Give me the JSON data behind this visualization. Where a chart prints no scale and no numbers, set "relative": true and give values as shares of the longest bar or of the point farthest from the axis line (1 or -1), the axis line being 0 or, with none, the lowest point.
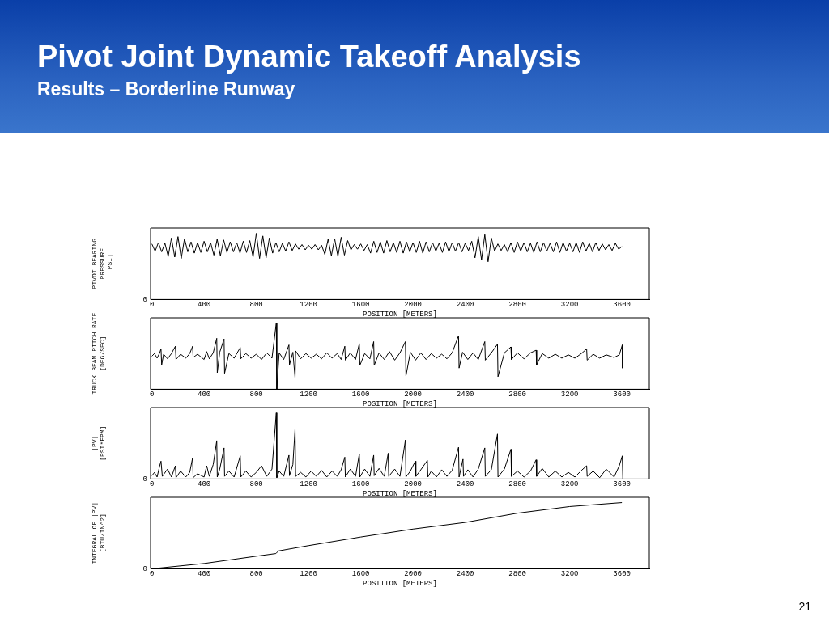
{
  "chart_data": [
    {
      "type": "line",
      "title": "Pivot Joint Dynamic Takeoff Analysis",
      "subtitle": "Results – Borderline Runway",
      "xlabel": "POSITION [METERS]",
      "ylabel": "PIVOT BEARING\nPRESSURE\n[PSI]",
      "relative": true,
      "xlim": [
        -10,
        3810
      ],
      "xticks": [
        0,
        400,
        800,
        1200,
        1600,
        2000,
        2400,
        2800,
        3200,
        3600
      ],
      "annotations": [
        "0"
      ],
      "series": [
        {
          "color": "#000000",
          "x": [
            0,
            25,
            50,
            75,
            100,
            125,
            150,
            175,
            200,
            225,
            250,
            275,
            300,
            325,
            350,
            375,
            400,
            425,
            450,
            475,
            500,
            525,
            550,
            575,
            600,
            625,
            650,
            675,
            700,
            725,
            750,
            775,
            800,
            825,
            850,
            875,
            900,
            925,
            950,
            975,
            1000,
            1025,
            1050,
            1075,
            1100,
            1125,
            1150,
            1175,
            1200,
            1225,
            1250,
            1275,
            1300,
            1325,
            1350,
            1375,
            1400,
            1425,
            1450,
            1475,
            1500,
            1525,
            1550,
            1575,
            1600,
            1625,
            1650,
            1675,
            1700,
            1725,
            1750,
            1775,
            1800,
            1825,
            1850,
            1875,
            1900,
            1925,
            1950,
            1975,
            2000,
            2025,
            2050,
            2075,
            2100,
            2125,
            2150,
            2175,
            2200,
            2225,
            2250,
            2275,
            2300,
            2325,
            2350,
            2375,
            2400,
            2425,
            2450,
            2475,
            2500,
            2525,
            2550,
            2575,
            2600,
            2625,
            2650,
            2675,
            2700,
            2725,
            2750,
            2775,
            2800,
            2825,
            2850,
            2875,
            2900,
            2925,
            2950,
            2975,
            3000,
            3025,
            3050,
            3075,
            3100,
            3125,
            3150,
            3175,
            3200,
            3225,
            3250,
            3275,
            3300,
            3325,
            3350,
            3375,
            3400,
            3425,
            3450,
            3475,
            3500,
            3525,
            3550,
            3575,
            3600
          ],
          "values": [
            0.84,
            0.73,
            0.86,
            0.72,
            0.85,
            0.65,
            0.93,
            0.64,
            0.95,
            0.62,
            0.92,
            0.72,
            0.87,
            0.7,
            0.86,
            0.71,
            0.88,
            0.72,
            0.86,
            0.67,
            0.91,
            0.66,
            0.9,
            0.71,
            0.87,
            0.72,
            0.86,
            0.7,
            0.88,
            0.71,
            0.89,
            0.64,
            1.0,
            0.62,
            0.96,
            0.63,
            0.93,
            0.7,
            0.86,
            0.72,
            0.85,
            0.73,
            0.87,
            0.74,
            0.84,
            0.76,
            0.83,
            0.75,
            0.82,
            0.76,
            0.83,
            0.75,
            0.82,
            0.68,
            0.91,
            0.66,
            0.92,
            0.65,
            0.94,
            0.67,
            0.89,
            0.75,
            0.83,
            0.76,
            0.84,
            0.74,
            0.83,
            0.7,
            0.88,
            0.71,
            0.87,
            0.7,
            0.89,
            0.72,
            0.86,
            0.71,
            0.88,
            0.7,
            0.87,
            0.72,
            0.86,
            0.71,
            0.88,
            0.7,
            0.87,
            0.72,
            0.86,
            0.73,
            0.85,
            0.71,
            0.87,
            0.72,
            0.86,
            0.73,
            0.86,
            0.72,
            0.85,
            0.74,
            0.88,
            0.63,
            0.95,
            0.6,
            0.98,
            0.57,
            0.93,
            0.73,
            0.84,
            0.74,
            0.83,
            0.72,
            0.86,
            0.71,
            0.87,
            0.73,
            0.86,
            0.72,
            0.85,
            0.71,
            0.87,
            0.72,
            0.86,
            0.73,
            0.85,
            0.72,
            0.87,
            0.71,
            0.86,
            0.73,
            0.85,
            0.72,
            0.86,
            0.71,
            0.87,
            0.73,
            0.85,
            0.72,
            0.86,
            0.74,
            0.84,
            0.75,
            0.83,
            0.74,
            0.85,
            0.76,
            0.8
          ]
        }
      ]
    },
    {
      "type": "line",
      "xlabel": "POSITION [METERS]",
      "ylabel": "TRUCK BEAM PITCH RATE\n[DEG/SEC]",
      "relative": true,
      "tick_labels": "x",
      "xlim": [
        -10,
        3810
      ],
      "xticks": [
        0,
        400,
        800,
        1200,
        1600,
        2000,
        2400,
        2800,
        3200,
        3600
      ],
      "series": [
        {
          "color": "#000000",
          "x": [
            0,
            20,
            40,
            60,
            70,
            75,
            90,
            120,
            150,
            180,
            185,
            220,
            260,
            290,
            312,
            316,
            350,
            400,
            420,
            440,
            470,
            497,
            501,
            520,
            553,
            557,
            590,
            630,
            677,
            681,
            720,
            760,
            800,
            840,
            880,
            920,
            953,
            957,
            975,
            1010,
            1050,
            1054,
            1080,
            1097,
            1101,
            1140,
            1180,
            1220,
            1260,
            1300,
            1340,
            1380,
            1420,
            1450,
            1478,
            1482,
            1520,
            1560,
            1589,
            1593,
            1630,
            1670,
            1699,
            1703,
            1740,
            1780,
            1820,
            1860,
            1900,
            1942,
            1946,
            1980,
            2020,
            2060,
            2100,
            2140,
            2180,
            2220,
            2260,
            2300,
            2349,
            2353,
            2380,
            2420,
            2460,
            2500,
            2550,
            2554,
            2600,
            2647,
            2651,
            2700,
            2750,
            2754,
            2800,
            2850,
            2900,
            2943,
            2947,
            2990,
            3040,
            3090,
            3140,
            3190,
            3240,
            3290,
            3330,
            3334,
            3380,
            3430,
            3480,
            3540,
            3580,
            3603,
            3605,
            3607
          ],
          "values": [
            0.5,
            0.54,
            0.47,
            0.55,
            0.61,
            0.37,
            0.53,
            0.46,
            0.54,
            0.65,
            0.45,
            0.53,
            0.47,
            0.54,
            0.65,
            0.48,
            0.53,
            0.45,
            0.57,
            0.46,
            0.55,
            0.77,
            0.25,
            0.56,
            0.76,
            0.24,
            0.54,
            0.47,
            0.63,
            0.46,
            0.54,
            0.47,
            0.53,
            0.45,
            0.55,
            0.47,
            1.0,
            0.0,
            0.55,
            0.45,
            0.67,
            0.37,
            0.56,
            0.17,
            0.58,
            0.46,
            0.54,
            0.47,
            0.53,
            0.46,
            0.55,
            0.47,
            0.54,
            0.45,
            0.65,
            0.44,
            0.55,
            0.45,
            0.69,
            0.36,
            0.54,
            0.46,
            0.72,
            0.36,
            0.55,
            0.45,
            0.57,
            0.44,
            0.55,
            0.72,
            0.2,
            0.56,
            0.44,
            0.55,
            0.45,
            0.54,
            0.47,
            0.53,
            0.46,
            0.55,
            0.81,
            0.32,
            0.56,
            0.45,
            0.55,
            0.45,
            0.72,
            0.44,
            0.55,
            0.68,
            0.19,
            0.55,
            0.64,
            0.45,
            0.55,
            0.46,
            0.55,
            0.59,
            0.37,
            0.54,
            0.47,
            0.53,
            0.47,
            0.52,
            0.47,
            0.54,
            0.61,
            0.44,
            0.53,
            0.47,
            0.52,
            0.48,
            0.52,
            0.67,
            0.32,
            0.5
          ]
        }
      ]
    },
    {
      "type": "line",
      "xlabel": "POSITION [METERS]",
      "ylabel": "|PV|\n[PSI*FPM]",
      "relative": true,
      "xlim": [
        -10,
        3810
      ],
      "xticks": [
        0,
        400,
        800,
        1200,
        1600,
        2000,
        2400,
        2800,
        3200,
        3600
      ],
      "annotations": [
        "0"
      ],
      "series": [
        {
          "color": "#000000",
          "x": [
            0,
            20,
            40,
            60,
            70,
            80,
            120,
            150,
            180,
            185,
            220,
            260,
            290,
            312,
            316,
            350,
            400,
            420,
            440,
            470,
            497,
            501,
            520,
            553,
            557,
            590,
            630,
            677,
            681,
            720,
            760,
            800,
            840,
            880,
            920,
            953,
            957,
            975,
            1010,
            1050,
            1054,
            1080,
            1097,
            1101,
            1140,
            1180,
            1220,
            1260,
            1300,
            1340,
            1380,
            1420,
            1450,
            1478,
            1482,
            1520,
            1560,
            1589,
            1593,
            1630,
            1670,
            1699,
            1703,
            1740,
            1780,
            1810,
            1814,
            1860,
            1900,
            1942,
            1946,
            1980,
            2018,
            2022,
            2060,
            2110,
            2114,
            2140,
            2180,
            2220,
            2260,
            2300,
            2349,
            2353,
            2383,
            2387,
            2420,
            2460,
            2500,
            2550,
            2554,
            2600,
            2647,
            2651,
            2700,
            2750,
            2754,
            2800,
            2850,
            2900,
            2943,
            2947,
            2990,
            3040,
            3090,
            3140,
            3190,
            3240,
            3290,
            3330,
            3334,
            3380,
            3430,
            3480,
            3540,
            3580,
            3603,
            3607
          ],
          "values": [
            0.05,
            0.1,
            0.03,
            0.2,
            0.27,
            0.04,
            0.15,
            0.03,
            0.2,
            0.02,
            0.12,
            0.03,
            0.1,
            0.32,
            0.02,
            0.08,
            0.03,
            0.2,
            0.04,
            0.22,
            0.58,
            0.03,
            0.15,
            0.47,
            0.04,
            0.12,
            0.03,
            0.35,
            0.03,
            0.12,
            0.03,
            0.1,
            0.2,
            0.04,
            0.15,
            1.0,
            0.02,
            0.12,
            0.04,
            0.36,
            0.05,
            0.22,
            0.76,
            0.04,
            0.1,
            0.03,
            0.12,
            0.04,
            0.13,
            0.03,
            0.12,
            0.04,
            0.14,
            0.33,
            0.03,
            0.15,
            0.04,
            0.38,
            0.03,
            0.15,
            0.04,
            0.36,
            0.05,
            0.16,
            0.04,
            0.39,
            0.04,
            0.15,
            0.04,
            0.59,
            0.03,
            0.12,
            0.27,
            0.04,
            0.14,
            0.28,
            0.03,
            0.12,
            0.03,
            0.14,
            0.04,
            0.13,
            0.48,
            0.03,
            0.3,
            0.04,
            0.14,
            0.03,
            0.15,
            0.47,
            0.04,
            0.14,
            0.68,
            0.03,
            0.15,
            0.45,
            0.04,
            0.12,
            0.03,
            0.12,
            0.29,
            0.04,
            0.16,
            0.03,
            0.12,
            0.03,
            0.1,
            0.03,
            0.13,
            0.2,
            0.04,
            0.12,
            0.02,
            0.15,
            0.03,
            0.2,
            0.35,
            0.0
          ]
        }
      ]
    },
    {
      "type": "line",
      "xlabel": "POSITION [METERS]",
      "ylabel": "INTEGRAL OF |PV|\n[BTU/IN^2]",
      "relative": true,
      "xlim": [
        -10,
        3810
      ],
      "xticks": [
        0,
        400,
        800,
        1200,
        1600,
        2000,
        2400,
        2800,
        3200,
        3600
      ],
      "annotations": [
        "0",
        "21"
      ],
      "series": [
        {
          "color": "#000000",
          "x": [
            0,
            400,
            800,
            950,
            970,
            1200,
            1600,
            2000,
            2400,
            2800,
            3200,
            3600
          ],
          "values": [
            0,
            0.08,
            0.19,
            0.23,
            0.27,
            0.35,
            0.48,
            0.6,
            0.7,
            0.84,
            0.94,
            1.0
          ]
        }
      ]
    }
  ]
}
